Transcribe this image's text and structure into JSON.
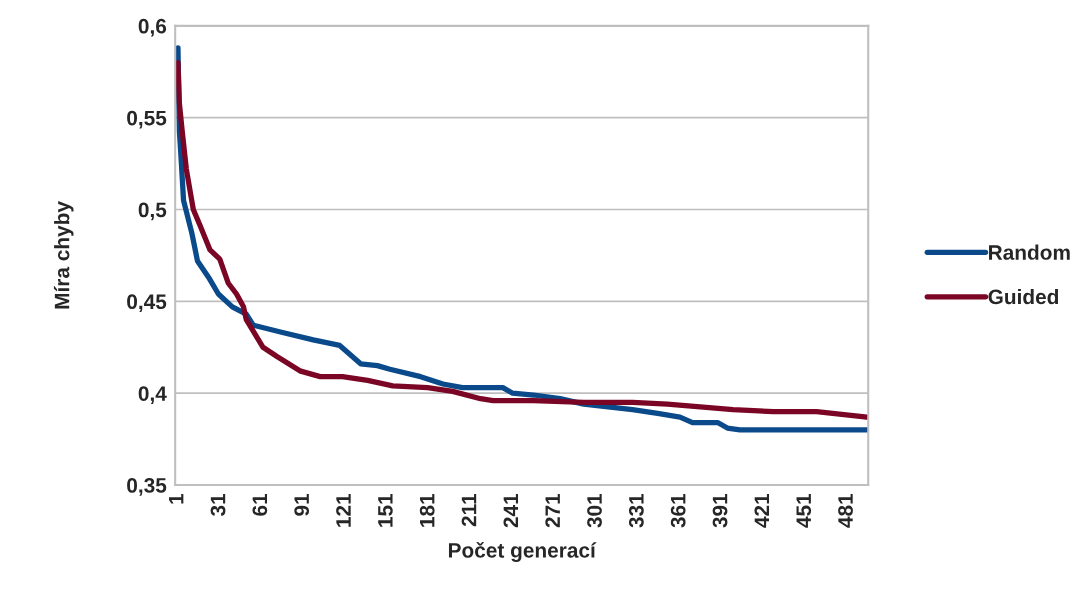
{
  "chart_data": {
    "type": "line",
    "xlabel": "Počet generací",
    "ylabel": "Míra chyby",
    "xlim": [
      -1,
      496
    ],
    "xticks": [
      1,
      31,
      61,
      91,
      121,
      151,
      181,
      211,
      241,
      271,
      301,
      331,
      361,
      391,
      421,
      451,
      481
    ],
    "ylim": [
      0.35,
      0.6
    ],
    "yticks": [
      {
        "value": 0.35,
        "label": "0,35"
      },
      {
        "value": 0.4,
        "label": "0,4"
      },
      {
        "value": 0.45,
        "label": "0,45"
      },
      {
        "value": 0.5,
        "label": "0,5"
      },
      {
        "value": 0.55,
        "label": "0,55"
      },
      {
        "value": 0.6,
        "label": "0,6"
      }
    ],
    "grid": "y",
    "legend": "right",
    "marker": "none",
    "line_style": "solid",
    "series": [
      {
        "name": "Random",
        "color": "#0b4a8a",
        "x": [
          1,
          2,
          3,
          5,
          11,
          15,
          23,
          30,
          40,
          50,
          55,
          76,
          98,
          117,
          132,
          144,
          153,
          175,
          191,
          205,
          234,
          241,
          256,
          275,
          292,
          327,
          345,
          361,
          370,
          388,
          395,
          404,
          495
        ],
        "values": [
          0.588,
          0.543,
          0.531,
          0.505,
          0.487,
          0.472,
          0.463,
          0.454,
          0.447,
          0.443,
          0.437,
          0.433,
          0.429,
          0.426,
          0.416,
          0.415,
          0.413,
          0.409,
          0.405,
          0.403,
          0.403,
          0.4,
          0.399,
          0.397,
          0.394,
          0.391,
          0.389,
          0.387,
          0.384,
          0.384,
          0.381,
          0.38,
          0.38
        ]
      },
      {
        "name": "Guided",
        "color": "#7b0524",
        "x": [
          1,
          2,
          4,
          7,
          12,
          17,
          24,
          31,
          37,
          43,
          48,
          50,
          58,
          62,
          72,
          89,
          103,
          119,
          137,
          155,
          180,
          198,
          218,
          227,
          256,
          292,
          327,
          352,
          399,
          428,
          459,
          495
        ],
        "values": [
          0.58,
          0.558,
          0.543,
          0.522,
          0.5,
          0.491,
          0.478,
          0.473,
          0.46,
          0.454,
          0.447,
          0.44,
          0.43,
          0.425,
          0.42,
          0.412,
          0.409,
          0.409,
          0.407,
          0.404,
          0.403,
          0.401,
          0.397,
          0.396,
          0.396,
          0.395,
          0.395,
          0.394,
          0.391,
          0.39,
          0.39,
          0.387
        ]
      }
    ]
  }
}
